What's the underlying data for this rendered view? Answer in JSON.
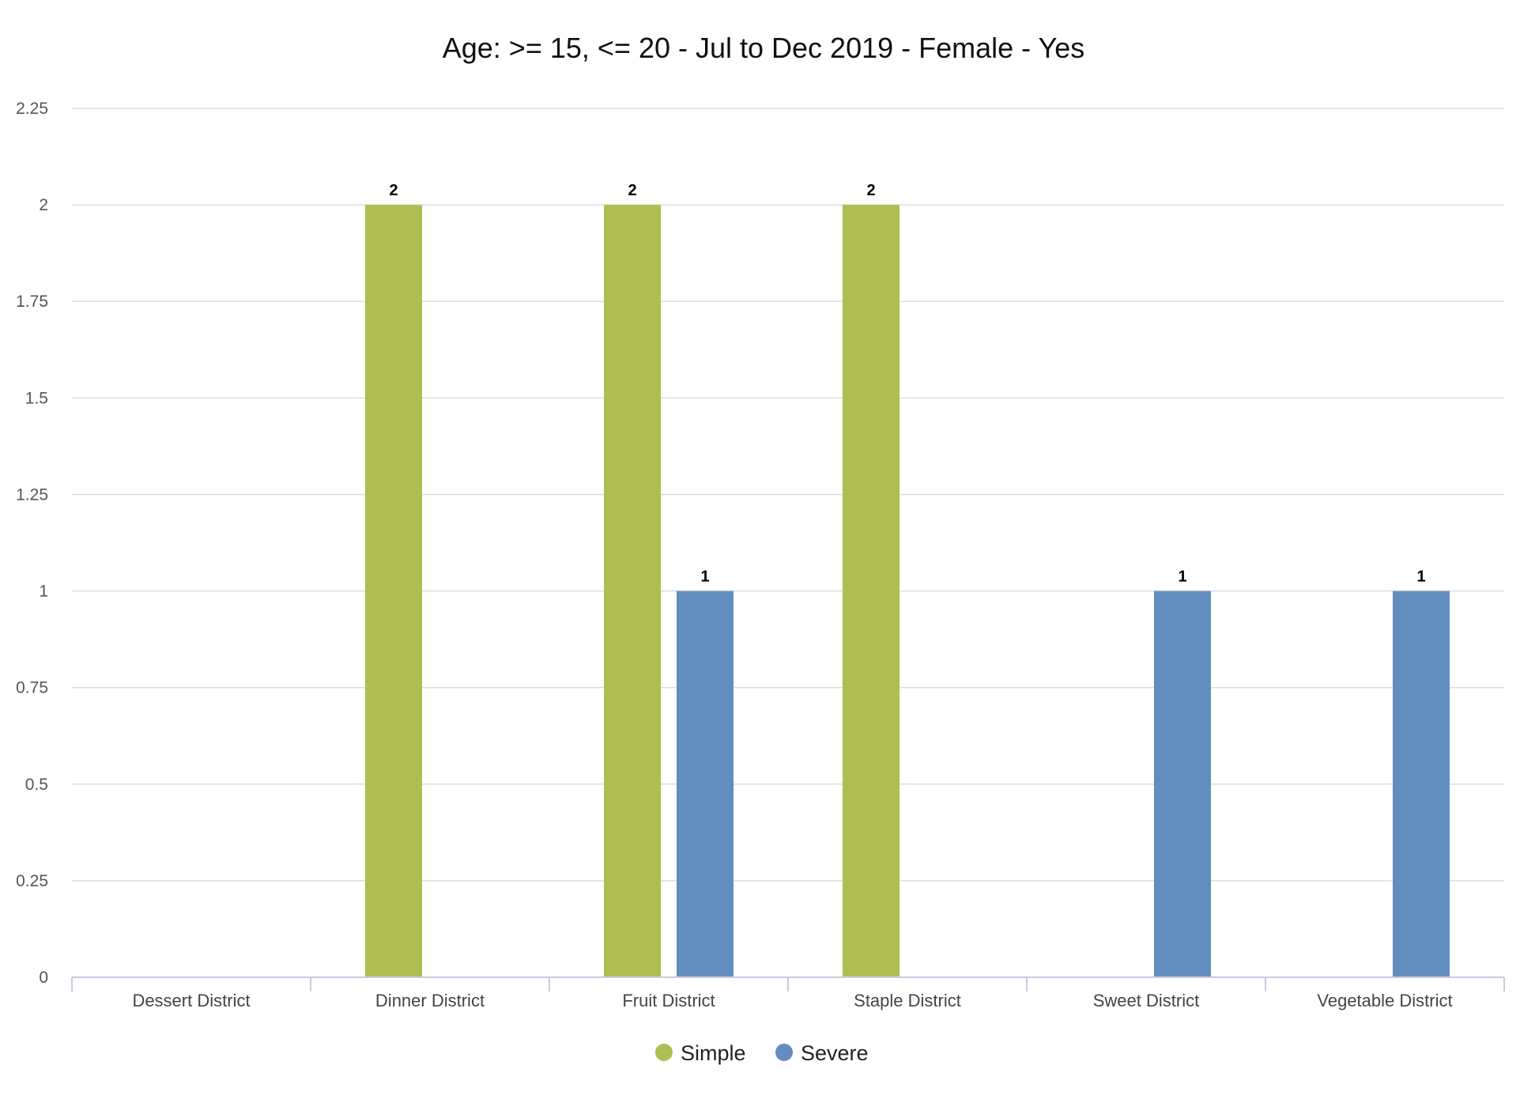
{
  "chart_data": {
    "type": "bar",
    "title": "Age: >= 15, <= 20 - Jul to Dec 2019 - Female - Yes",
    "xlabel": "",
    "ylabel": "",
    "categories": [
      "Dessert District",
      "Dinner District",
      "Fruit District",
      "Staple District",
      "Sweet District",
      "Vegetable District"
    ],
    "series": [
      {
        "name": "Simple",
        "color": "#afbe52",
        "values": [
          null,
          2,
          2,
          2,
          null,
          null
        ]
      },
      {
        "name": "Severe",
        "color": "#638dbe",
        "values": [
          null,
          null,
          1,
          null,
          1,
          1
        ]
      }
    ],
    "ylim": [
      0,
      2.25
    ],
    "yticks": [
      "0",
      "0.25",
      "0.5",
      "0.75",
      "1",
      "1.25",
      "1.5",
      "1.75",
      "2",
      "2.25"
    ],
    "grid": true,
    "legend_position": "bottom-center"
  }
}
